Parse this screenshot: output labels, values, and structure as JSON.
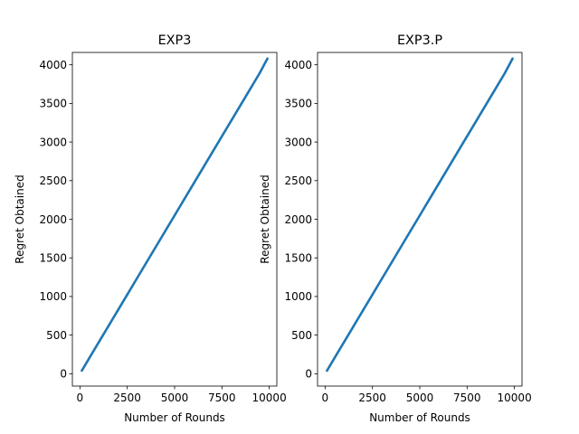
{
  "chart_data": [
    {
      "type": "line",
      "title": "EXP3",
      "xlabel": "Number of Rounds",
      "ylabel": "Regret Obtained",
      "xlim": [
        -400,
        10400
      ],
      "ylim": [
        -160,
        4160
      ],
      "xticks": [
        "0",
        "2500",
        "5000",
        "7500",
        "10000"
      ],
      "yticks": [
        "0",
        "500",
        "1000",
        "1500",
        "2000",
        "2500",
        "3000",
        "3500",
        "4000"
      ],
      "series_color": "#1f77b4",
      "grid": false,
      "x": [
        100,
        500,
        1000,
        1500,
        2000,
        2500,
        3000,
        3500,
        4000,
        4500,
        5000,
        5500,
        6000,
        6500,
        7000,
        7500,
        8000,
        8500,
        9000,
        9500,
        9900
      ],
      "y": [
        40,
        205,
        410,
        615,
        820,
        1025,
        1230,
        1435,
        1640,
        1845,
        2050,
        2255,
        2460,
        2665,
        2870,
        3075,
        3280,
        3485,
        3690,
        3895,
        4080
      ]
    },
    {
      "type": "line",
      "title": "EXP3.P",
      "xlabel": "Number of Rounds",
      "ylabel": "Regret Obtained",
      "xlim": [
        -400,
        10400
      ],
      "ylim": [
        -160,
        4160
      ],
      "xticks": [
        "0",
        "2500",
        "5000",
        "7500",
        "10000"
      ],
      "yticks": [
        "0",
        "500",
        "1000",
        "1500",
        "2000",
        "2500",
        "3000",
        "3500",
        "4000"
      ],
      "series_color": "#1f77b4",
      "grid": false,
      "x": [
        100,
        500,
        1000,
        1500,
        2000,
        2500,
        3000,
        3500,
        4000,
        4500,
        5000,
        5500,
        6000,
        6500,
        7000,
        7500,
        8000,
        8500,
        9000,
        9500,
        9900
      ],
      "y": [
        40,
        205,
        410,
        615,
        820,
        1025,
        1230,
        1435,
        1640,
        1845,
        2050,
        2255,
        2460,
        2665,
        2870,
        3075,
        3280,
        3485,
        3690,
        3895,
        4080
      ]
    }
  ]
}
